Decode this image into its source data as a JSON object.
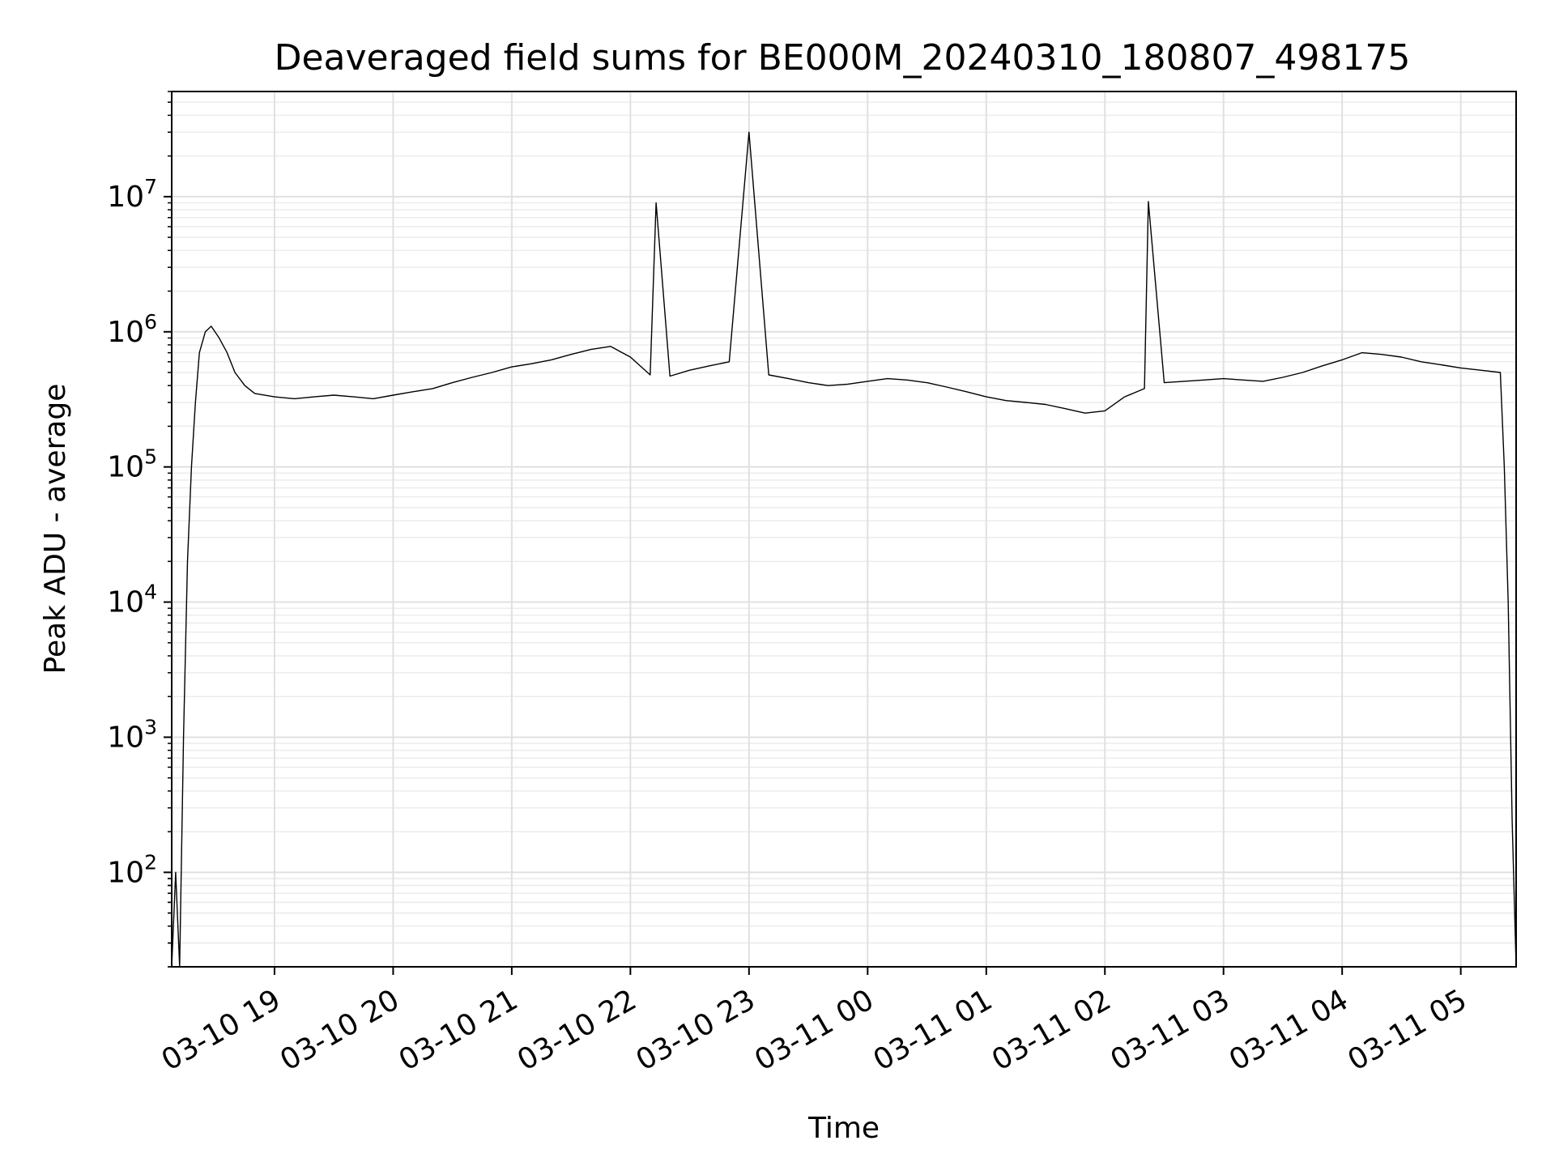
{
  "chart_data": {
    "type": "line",
    "title": "Deaveraged field sums for BE000M_20240310_180807_498175",
    "xlabel": "Time",
    "ylabel": "Peak ADU - average",
    "y_scale": "log",
    "ylim": [
      20,
      60000000
    ],
    "xlim": [
      "2024-03-10 18:08",
      "2024-03-11 05:28"
    ],
    "grid": true,
    "grid_minor": true,
    "line_color": "#000000",
    "x_tick_labels": [
      "03-10 19",
      "03-10 20",
      "03-10 21",
      "03-10 22",
      "03-10 23",
      "03-11 00",
      "03-11 01",
      "03-11 02",
      "03-11 03",
      "03-11 04",
      "03-11 05"
    ],
    "x_ticks": [
      "2024-03-10 19:00",
      "2024-03-10 20:00",
      "2024-03-10 21:00",
      "2024-03-10 22:00",
      "2024-03-10 23:00",
      "2024-03-11 00:00",
      "2024-03-11 01:00",
      "2024-03-11 02:00",
      "2024-03-11 03:00",
      "2024-03-11 04:00",
      "2024-03-11 05:00"
    ],
    "y_ticks": [
      {
        "base": "10",
        "exp": "2",
        "value": 100
      },
      {
        "base": "10",
        "exp": "3",
        "value": 1000
      },
      {
        "base": "10",
        "exp": "4",
        "value": 10000
      },
      {
        "base": "10",
        "exp": "5",
        "value": 100000
      },
      {
        "base": "10",
        "exp": "6",
        "value": 1000000
      },
      {
        "base": "10",
        "exp": "7",
        "value": 10000000
      }
    ],
    "series": [
      {
        "x": [
          "2024-03-10 18:08",
          "2024-03-10 18:10",
          "2024-03-10 18:12",
          "2024-03-10 18:14",
          "2024-03-10 18:16",
          "2024-03-10 18:18",
          "2024-03-10 18:20",
          "2024-03-10 18:22",
          "2024-03-10 18:25",
          "2024-03-10 18:28",
          "2024-03-10 18:32",
          "2024-03-10 18:36",
          "2024-03-10 18:40",
          "2024-03-10 18:45",
          "2024-03-10 18:50",
          "2024-03-10 19:00",
          "2024-03-10 19:10",
          "2024-03-10 19:20",
          "2024-03-10 19:30",
          "2024-03-10 19:40",
          "2024-03-10 19:50",
          "2024-03-10 20:00",
          "2024-03-10 20:10",
          "2024-03-10 20:20",
          "2024-03-10 20:30",
          "2024-03-10 20:40",
          "2024-03-10 20:50",
          "2024-03-10 21:00",
          "2024-03-10 21:10",
          "2024-03-10 21:20",
          "2024-03-10 21:30",
          "2024-03-10 21:40",
          "2024-03-10 21:50",
          "2024-03-10 22:00",
          "2024-03-10 22:10",
          "2024-03-10 22:13",
          "2024-03-10 22:20",
          "2024-03-10 22:30",
          "2024-03-10 22:40",
          "2024-03-10 22:50",
          "2024-03-10 23:00",
          "2024-03-10 23:10",
          "2024-03-10 23:20",
          "2024-03-10 23:30",
          "2024-03-10 23:40",
          "2024-03-10 23:50",
          "2024-03-11 00:00",
          "2024-03-11 00:10",
          "2024-03-11 00:20",
          "2024-03-11 00:30",
          "2024-03-11 00:40",
          "2024-03-11 00:50",
          "2024-03-11 01:00",
          "2024-03-11 01:10",
          "2024-03-11 01:20",
          "2024-03-11 01:30",
          "2024-03-11 01:40",
          "2024-03-11 01:50",
          "2024-03-11 02:00",
          "2024-03-11 02:10",
          "2024-03-11 02:20",
          "2024-03-11 02:22",
          "2024-03-11 02:30",
          "2024-03-11 02:40",
          "2024-03-11 02:50",
          "2024-03-11 03:00",
          "2024-03-11 03:10",
          "2024-03-11 03:20",
          "2024-03-11 03:30",
          "2024-03-11 03:40",
          "2024-03-11 03:50",
          "2024-03-11 04:00",
          "2024-03-11 04:10",
          "2024-03-11 04:20",
          "2024-03-11 04:30",
          "2024-03-11 04:40",
          "2024-03-11 04:50",
          "2024-03-11 05:00",
          "2024-03-11 05:10",
          "2024-03-11 05:20",
          "2024-03-11 05:22",
          "2024-03-11 05:24",
          "2024-03-11 05:26",
          "2024-03-11 05:28"
        ],
        "y": [
          20,
          100,
          20,
          1000,
          20000,
          100000,
          300000,
          700000,
          1000000,
          1100000,
          900000,
          700000,
          500000,
          400000,
          350000,
          330000,
          320000,
          330000,
          340000,
          330000,
          320000,
          340000,
          360000,
          380000,
          420000,
          460000,
          500000,
          550000,
          580000,
          620000,
          680000,
          740000,
          780000,
          650000,
          480000,
          9000000,
          470000,
          520000,
          560000,
          600000,
          30000000,
          480000,
          450000,
          420000,
          400000,
          410000,
          430000,
          450000,
          440000,
          420000,
          390000,
          360000,
          330000,
          310000,
          300000,
          290000,
          270000,
          250000,
          260000,
          330000,
          380000,
          9200000,
          420000,
          430000,
          440000,
          450000,
          440000,
          430000,
          460000,
          500000,
          560000,
          620000,
          700000,
          680000,
          650000,
          600000,
          570000,
          540000,
          520000,
          500000,
          100000,
          10000,
          240,
          20
        ]
      }
    ]
  }
}
